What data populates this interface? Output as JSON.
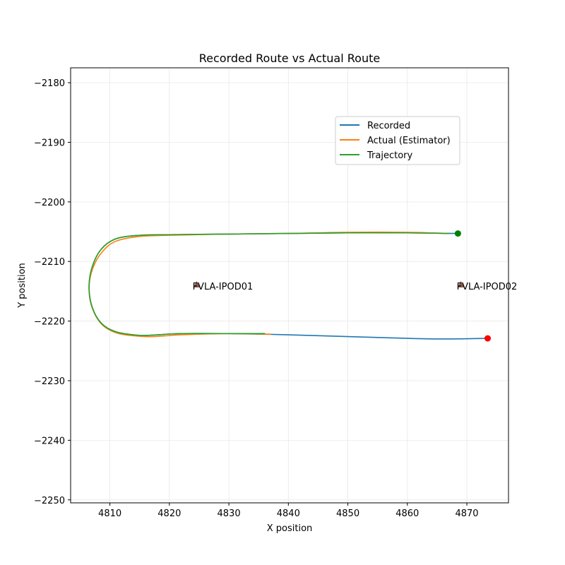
{
  "chart_data": {
    "type": "line",
    "title": "Recorded Route vs Actual Route",
    "xlabel": "X position",
    "ylabel": "Y position",
    "xlim": [
      4803.4,
      4877.0
    ],
    "ylim": [
      -2250.5,
      -2177.5
    ],
    "xticks": [
      4810,
      4820,
      4830,
      4840,
      4850,
      4860,
      4870
    ],
    "yticks": [
      -2180,
      -2190,
      -2200,
      -2210,
      -2220,
      -2230,
      -2240,
      -2250
    ],
    "xtick_labels": [
      "4810",
      "4820",
      "4830",
      "4840",
      "4850",
      "4860",
      "4870"
    ],
    "ytick_labels": [
      "−2180",
      "−2190",
      "−2200",
      "−2210",
      "−2220",
      "−2230",
      "−2240",
      "−2250"
    ],
    "grid": true,
    "legend_position": "upper-right",
    "series": [
      {
        "name": "Recorded",
        "color": "#1f77b4",
        "x": [
          4868.5,
          4860,
          4850,
          4840,
          4830,
          4820,
          4815,
          4811,
          4808.5,
          4807,
          4806.5,
          4807,
          4808.5,
          4811,
          4815,
          4818,
          4822,
          4830,
          4840,
          4850,
          4860,
          4866,
          4873.5
        ],
        "y": [
          -2205.3,
          -2205.2,
          -2205.2,
          -2205.3,
          -2205.4,
          -2205.5,
          -2205.6,
          -2206.2,
          -2208.0,
          -2211.0,
          -2214.3,
          -2217.6,
          -2220.3,
          -2221.8,
          -2222.4,
          -2222.3,
          -2222.1,
          -2222.1,
          -2222.3,
          -2222.6,
          -2222.9,
          -2223.0,
          -2222.9
        ]
      },
      {
        "name": "Actual (Estimator)",
        "color": "#ff7f0e",
        "x": [
          4867,
          4860,
          4850,
          4840,
          4830,
          4820,
          4815,
          4811,
          4808.7,
          4807.1,
          4806.5,
          4807,
          4808.7,
          4811.5,
          4816,
          4819,
          4822,
          4830,
          4837
        ],
        "y": [
          -2205.3,
          -2205.1,
          -2205.1,
          -2205.3,
          -2205.4,
          -2205.6,
          -2205.8,
          -2206.6,
          -2208.4,
          -2211.2,
          -2214.4,
          -2217.7,
          -2220.6,
          -2222.1,
          -2222.6,
          -2222.5,
          -2222.3,
          -2222.1,
          -2222.2
        ]
      },
      {
        "name": "Trajectory",
        "color": "#2ca02c",
        "x": [
          4867,
          4860,
          4850,
          4840,
          4830,
          4820,
          4815,
          4811,
          4808.5,
          4807,
          4806.5,
          4807,
          4808.5,
          4811,
          4815,
          4818,
          4822,
          4830,
          4836
        ],
        "y": [
          -2205.3,
          -2205.2,
          -2205.2,
          -2205.3,
          -2205.4,
          -2205.5,
          -2205.6,
          -2206.2,
          -2208.0,
          -2211.0,
          -2214.3,
          -2217.6,
          -2220.3,
          -2221.8,
          -2222.4,
          -2222.3,
          -2222.1,
          -2222.1,
          -2222.1
        ]
      }
    ],
    "points": [
      {
        "x": 4868.5,
        "y": -2205.3,
        "color": "#008000"
      },
      {
        "x": 4873.5,
        "y": -2222.9,
        "color": "#ff0000"
      }
    ],
    "annotations": [
      {
        "label": "FVLA-IPOD01",
        "x": 4824.6,
        "y": -2214.0,
        "marker_color": "#8c564b"
      },
      {
        "label": "FVLA-IPOD02",
        "x": 4869.0,
        "y": -2214.0,
        "marker_color": "#8c564b"
      }
    ]
  }
}
